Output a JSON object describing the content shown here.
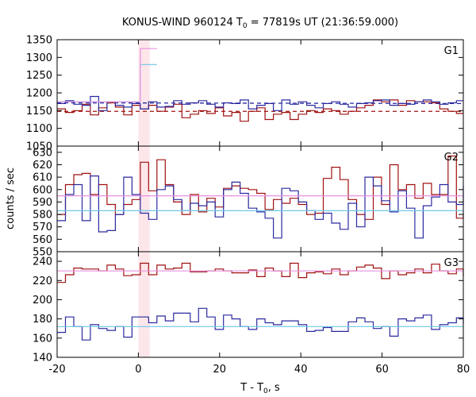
{
  "chart_data": {
    "type": "line",
    "title_main": "KONUS-WIND 960124 T",
    "title_sub": "0",
    "title_rest": " = 77819s UT (21:36:59.000)",
    "xlabel_main": "T - T",
    "xlabel_sub": "0",
    "xlabel_rest": ", s",
    "ylabel": "counts / sec",
    "xlim": [
      -20,
      80
    ],
    "xticks": [
      "-20",
      "0",
      "20",
      "40",
      "60",
      "80"
    ],
    "highlight": {
      "x0": 0,
      "x1": 2.8,
      "color": "#fde6ea"
    },
    "colors": {
      "red": "#a01010",
      "blue": "#2a2aa0",
      "cyan": "#6ec8e8",
      "pink": "#e890e0"
    },
    "panels": [
      {
        "label": "G1",
        "ylim": [
          1050,
          1350
        ],
        "yticks": [
          "1050",
          "1100",
          "1150",
          "1200",
          "1250",
          "1300",
          "1350"
        ],
        "bin_start": -20,
        "bin_width": 2.048,
        "series": [
          {
            "color": "red",
            "values": [
              1155,
              1145,
              1150,
              1168,
              1138,
              1158,
              1172,
              1160,
              1138,
              1165,
              1155,
              1165,
              1148,
              1160,
              1168,
              1130,
              1140,
              1150,
              1142,
              1158,
              1135,
              1145,
              1120,
              1148,
              1158,
              1125,
              1140,
              1145,
              1125,
              1140,
              1150,
              1145,
              1155,
              1150,
              1140,
              1148,
              1158,
              1165,
              1180,
              1175,
              1180,
              1165,
              1178,
              1175,
              1175,
              1172,
              1155,
              1148,
              1142
            ]
          },
          {
            "color": "blue",
            "values": [
              1170,
              1178,
              1168,
              1165,
              1190,
              1150,
              1175,
              1165,
              1160,
              1170,
              1155,
              1175,
              1160,
              1162,
              1178,
              1168,
              1172,
              1178,
              1168,
              1160,
              1172,
              1170,
              1180,
              1155,
              1165,
              1170,
              1150,
              1180,
              1168,
              1175,
              1165,
              1158,
              1170,
              1175,
              1168,
              1160,
              1170,
              1172,
              1178,
              1180,
              1165,
              1170,
              1168,
              1175,
              1180,
              1175,
              1168,
              1172,
              1178
            ]
          },
          {
            "color": "cyan",
            "values": [
              1175,
              1175,
              1175,
              1175,
              1175,
              1175,
              1175,
              1175,
              1175,
              1175,
              1280,
              1280
            ]
          },
          {
            "color": "pink",
            "values": [
              1175,
              1175,
              1175,
              1175,
              1175,
              1175,
              1175,
              1175,
              1175,
              1175,
              1325,
              1325
            ]
          }
        ],
        "bg_lines": [
          {
            "color": "blue",
            "dashed": true,
            "y0": 1172,
            "y1": 1170
          },
          {
            "color": "red",
            "dashed": true,
            "y0": 1148,
            "y1": 1148
          }
        ]
      },
      {
        "label": "G2",
        "ylim": [
          550,
          635
        ],
        "yticks": [
          "550",
          "560",
          "570",
          "580",
          "590",
          "600",
          "610",
          "620",
          "630"
        ],
        "bin_start": -20,
        "bin_width": 2.048,
        "series": [
          {
            "color": "red",
            "values": [
              580,
              604,
              612,
              613,
              596,
              604,
              588,
              580,
              588,
              592,
              622,
              599,
              624,
              604,
              590,
              580,
              596,
              582,
              593,
              586,
              601,
              603,
              601,
              600,
              597,
              584,
              592,
              589,
              593,
              588,
              580,
              581,
              609,
              618,
              608,
              592,
              580,
              576,
              610,
              588,
              620,
              600,
              604,
              593,
              605,
              596,
              596,
              627,
              577,
              581
            ]
          },
          {
            "color": "blue",
            "values": [
              575,
              596,
              604,
              575,
              611,
              566,
              567,
              580,
              610,
              596,
              581,
              576,
              600,
              603,
              592,
              583,
              589,
              587,
              590,
              578,
              600,
              606,
              597,
              585,
              582,
              577,
              561,
              601,
              599,
              590,
              583,
              576,
              581,
              573,
              568,
              589,
              570,
              610,
              603,
              591,
              582,
              599,
              585,
              561,
              587,
              594,
              604,
              590,
              588,
              603
            ]
          },
          {
            "color": "pink",
            "values": [
              595,
              595
            ]
          },
          {
            "color": "cyan",
            "values": [
              583,
              583
            ]
          }
        ]
      },
      {
        "label": "G3",
        "ylim": [
          140,
          250
        ],
        "yticks": [
          "140",
          "160",
          "180",
          "200",
          "220",
          "240"
        ],
        "bin_start": -20,
        "bin_width": 2.048,
        "series": [
          {
            "color": "red",
            "values": [
              218,
              226,
              233,
              232,
              232,
              230,
              236,
              232,
              225,
              226,
              238,
              226,
              236,
              232,
              233,
              238,
              229,
              229,
              230,
              232,
              230,
              228,
              228,
              231,
              224,
              233,
              230,
              224,
              238,
              223,
              228,
              229,
              227,
              232,
              226,
              230,
              234,
              236,
              233,
              222,
              230,
              226,
              228,
              232,
              228,
              237,
              230,
              227,
              232,
              224
            ]
          },
          {
            "color": "blue",
            "values": [
              166,
              182,
              172,
              158,
              174,
              170,
              168,
              172,
              161,
              182,
              182,
              176,
              183,
              178,
              186,
              186,
              177,
              191,
              182,
              169,
              184,
              180,
              172,
              169,
              180,
              176,
              174,
              178,
              178,
              174,
              167,
              168,
              171,
              167,
              167,
              177,
              181,
              177,
              170,
              172,
              162,
              180,
              178,
              181,
              184,
              169,
              174,
              176,
              181,
              175
            ]
          },
          {
            "color": "pink",
            "values": [
              230,
              230
            ]
          },
          {
            "color": "cyan",
            "values": [
              172,
              172
            ]
          }
        ]
      }
    ]
  }
}
